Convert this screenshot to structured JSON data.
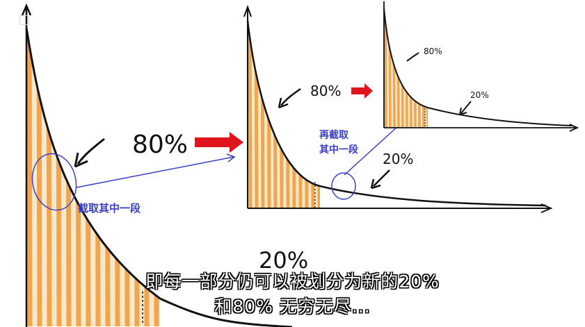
{
  "labels": {
    "main_80": "80%",
    "main_20": "20%",
    "mid_80": "80%",
    "mid_20": "20%",
    "small_80": "80%",
    "small_20": "20%",
    "cut_1": "截取其中一段",
    "cut_2_line1": "再截取",
    "cut_2_line2": "其中一段"
  },
  "subtitle": {
    "line1": "即每一部分仍可以被划分为新的20%",
    "line2": "和80%  无穷无尽..."
  },
  "colors": {
    "curve": "#111111",
    "stripe_orange": "#f0a64f",
    "stripe_light": "#fbe8c9",
    "arrow_red": "#e0141c",
    "annotation_blue": "#3b3fc4",
    "axis": "#111111"
  },
  "icons": {
    "red_arrow": "right-arrow-icon",
    "black_arrow": "pointer-arrow-icon"
  }
}
